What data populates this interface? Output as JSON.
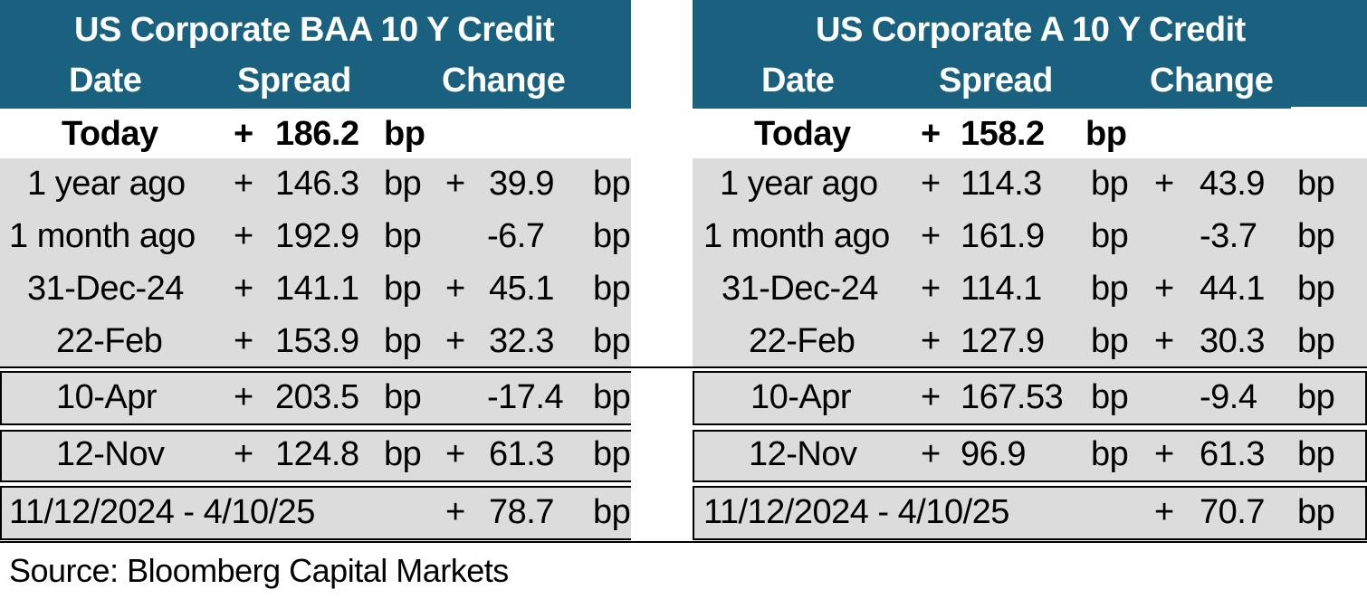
{
  "colors": {
    "header_bg": "#19617f",
    "header_text": "#ffffff",
    "row_bg": "#dcdcdc"
  },
  "baa": {
    "title": "US Corporate BAA 10 Y  Credit",
    "col_date": "Date",
    "col_spread": "Spread",
    "col_change": "Change",
    "today": {
      "label": "Today",
      "sign": "+",
      "spread": "186.2",
      "unit": "bp"
    },
    "rows": [
      {
        "label": "1 year ago",
        "sign": "+",
        "spread": "146.3",
        "unit": "bp",
        "csign": "+",
        "change": "39.9",
        "cunit": "bp"
      },
      {
        "label": "1 month ago",
        "sign": "+",
        "spread": "192.9",
        "unit": "bp",
        "csign": "",
        "change": "-6.7",
        "cunit": "bp"
      },
      {
        "label": "31-Dec-24",
        "sign": "+",
        "spread": "141.1",
        "unit": "bp",
        "csign": "+",
        "change": "45.1",
        "cunit": "bp"
      },
      {
        "label": "22-Feb",
        "sign": "+",
        "spread": "153.9",
        "unit": "bp",
        "csign": "+",
        "change": "32.3",
        "cunit": "bp"
      }
    ],
    "apr": {
      "label": "10-Apr",
      "sign": "+",
      "spread": "203.5",
      "unit": "bp",
      "csign": "",
      "change": "-17.4",
      "cunit": "bp"
    },
    "nov": {
      "label": "12-Nov",
      "sign": "+",
      "spread": "124.8",
      "unit": "bp",
      "csign": "+",
      "change": "61.3",
      "cunit": "bp"
    },
    "range": {
      "label": "11/12/2024 - 4/10/25",
      "csign": "+",
      "change": "78.7",
      "cunit": "bp"
    }
  },
  "a": {
    "title": "US Corporate A 10 Y Credit",
    "col_date": "Date",
    "col_spread": "Spread",
    "col_change": "Change",
    "today": {
      "label": "Today",
      "sign": "+",
      "spread": "158.2",
      "unit": "bp"
    },
    "rows": [
      {
        "label": "1 year ago",
        "sign": "+",
        "spread": "114.3",
        "unit": "bp",
        "csign": "+",
        "change": "43.9",
        "cunit": "bp"
      },
      {
        "label": "1 month ago",
        "sign": "+",
        "spread": "161.9",
        "unit": "bp",
        "csign": "",
        "change": "-3.7",
        "cunit": "bp"
      },
      {
        "label": "31-Dec-24",
        "sign": "+",
        "spread": "114.1",
        "unit": "bp",
        "csign": "+",
        "change": "44.1",
        "cunit": "bp"
      },
      {
        "label": "22-Feb",
        "sign": "+",
        "spread": "127.9",
        "unit": "bp",
        "csign": "+",
        "change": "30.3",
        "cunit": "bp"
      }
    ],
    "apr": {
      "label": "10-Apr",
      "sign": "+",
      "spread": "167.53",
      "unit": "bp",
      "csign": "",
      "change": "-9.4",
      "cunit": "bp"
    },
    "nov": {
      "label": "12-Nov",
      "sign": "+",
      "spread": "96.9",
      "unit": "bp",
      "csign": "+",
      "change": "61.3",
      "cunit": "bp"
    },
    "range": {
      "label": "11/12/2024 - 4/10/25",
      "csign": "+",
      "change": "70.7",
      "cunit": "bp"
    }
  },
  "source": "Source: Bloomberg Capital Markets"
}
